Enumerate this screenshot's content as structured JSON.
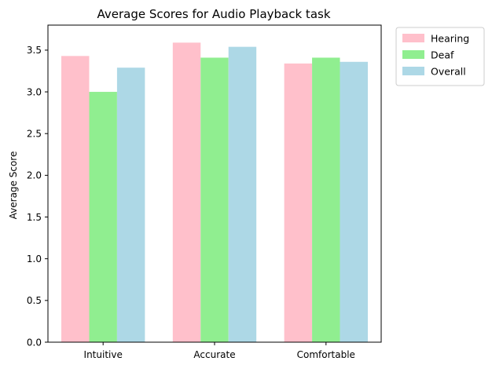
{
  "chart_data": {
    "type": "bar",
    "title": "Average Scores for Audio Playback task",
    "xlabel": "",
    "ylabel": "Average Score",
    "categories": [
      "Intuitive",
      "Accurate",
      "Comfortable"
    ],
    "series": [
      {
        "name": "Hearing",
        "color": "#ffc0cb",
        "values": [
          3.43,
          3.59,
          3.34
        ]
      },
      {
        "name": "Deaf",
        "color": "#90ee90",
        "values": [
          3.0,
          3.41,
          3.41
        ]
      },
      {
        "name": "Overall",
        "color": "#add8e6",
        "values": [
          3.29,
          3.54,
          3.36
        ]
      }
    ],
    "ylim": [
      0,
      3.8
    ],
    "yticks": [
      "0.0",
      "0.5",
      "1.0",
      "1.5",
      "2.0",
      "2.5",
      "3.0",
      "3.5"
    ],
    "grid": false,
    "legend_position": "outside-top-right"
  }
}
